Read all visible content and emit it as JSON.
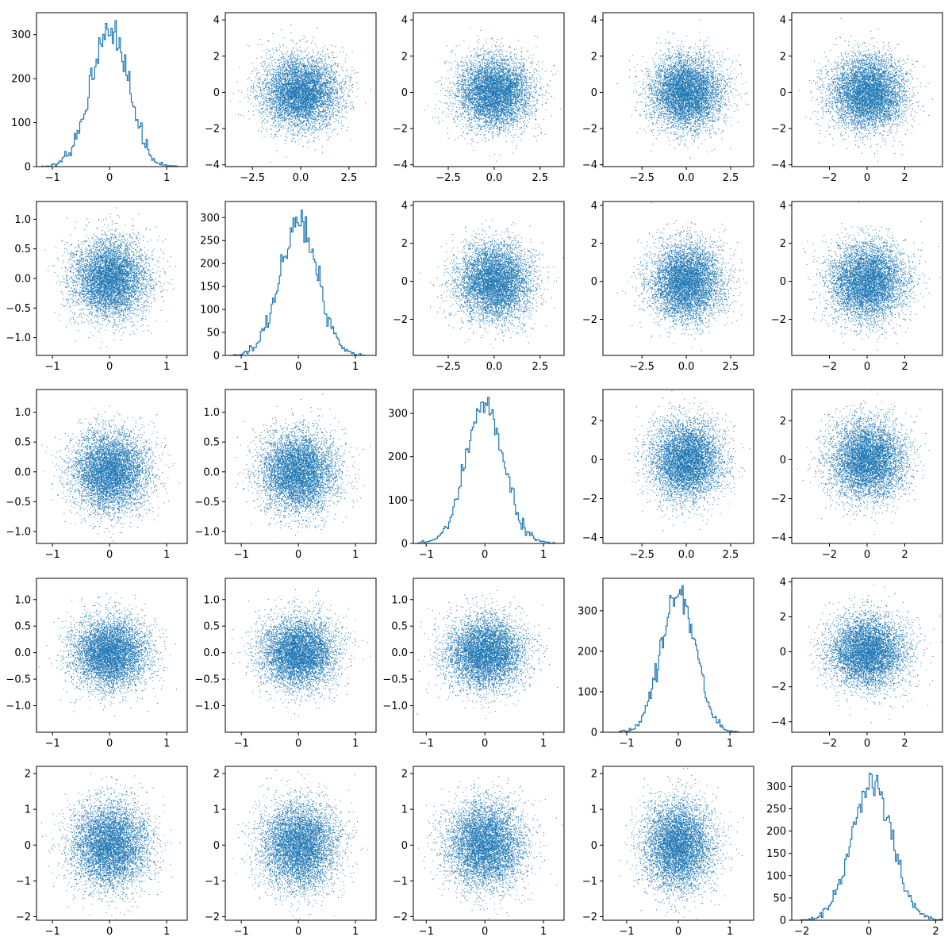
{
  "figure": {
    "title": "",
    "colors": {
      "series": "#1f77b4",
      "axes": "#000000",
      "background": "#ffffff"
    }
  },
  "chart_data": [
    {
      "type": "histogram",
      "row": 0,
      "col": 0,
      "xlim": [
        -1.28,
        1.36
      ],
      "ylim": [
        0,
        350
      ],
      "xticks": [
        -1,
        0,
        1
      ],
      "yticks": [
        0,
        100,
        200,
        300
      ],
      "peak": 332,
      "mean": 0.0,
      "std": 0.33,
      "samples": 10000,
      "bins": 100,
      "grid": false,
      "legend": "none"
    },
    {
      "type": "scatter",
      "row": 0,
      "col": 1,
      "xlim": [
        -3.9,
        3.9
      ],
      "ylim": [
        -4.1,
        4.4
      ],
      "xticks": [
        -2.5,
        0.0,
        2.5
      ],
      "yticks": [
        -4,
        -2,
        0,
        2,
        4
      ],
      "std_x": 1.0,
      "std_y": 1.0,
      "points": 10000,
      "marker": ",",
      "grid": false,
      "legend": "none"
    },
    {
      "type": "scatter",
      "row": 0,
      "col": 2,
      "xlim": [
        -4.4,
        3.8
      ],
      "ylim": [
        -4.1,
        4.4
      ],
      "xticks": [
        -2.5,
        0.0,
        2.5
      ],
      "yticks": [
        -4,
        -2,
        0,
        2,
        4
      ],
      "std_x": 1.0,
      "std_y": 1.0,
      "points": 10000,
      "marker": ",",
      "grid": false,
      "legend": "none"
    },
    {
      "type": "scatter",
      "row": 0,
      "col": 3,
      "xlim": [
        -4.7,
        3.8
      ],
      "ylim": [
        -4.1,
        4.4
      ],
      "xticks": [
        -2.5,
        0.0,
        2.5
      ],
      "yticks": [
        -4,
        -2,
        0,
        2,
        4
      ],
      "std_x": 1.0,
      "std_y": 1.0,
      "points": 10000,
      "marker": ",",
      "grid": false,
      "legend": "none"
    },
    {
      "type": "scatter",
      "row": 0,
      "col": 4,
      "xlim": [
        -4.0,
        4.0
      ],
      "ylim": [
        -4.1,
        4.4
      ],
      "xticks": [
        -2,
        0,
        2
      ],
      "yticks": [
        -4,
        -2,
        0,
        2,
        4
      ],
      "std_x": 1.0,
      "std_y": 1.0,
      "points": 10000,
      "marker": ",",
      "grid": false,
      "legend": "none"
    },
    {
      "type": "scatter",
      "row": 1,
      "col": 0,
      "xlim": [
        -1.28,
        1.36
      ],
      "ylim": [
        -1.3,
        1.3
      ],
      "xticks": [
        -1,
        0,
        1
      ],
      "yticks": [
        -1.0,
        -0.5,
        0.0,
        0.5,
        1.0
      ],
      "std_x": 0.33,
      "std_y": 0.33,
      "points": 10000,
      "marker": ",",
      "grid": false,
      "legend": "none"
    },
    {
      "type": "histogram",
      "row": 1,
      "col": 1,
      "xlim": [
        -1.28,
        1.36
      ],
      "ylim": [
        0,
        335
      ],
      "xticks": [
        -1,
        0,
        1
      ],
      "yticks": [
        0,
        50,
        100,
        150,
        200,
        250,
        300
      ],
      "peak": 316,
      "mean": 0.0,
      "std": 0.33,
      "samples": 10000,
      "bins": 100,
      "grid": false,
      "legend": "none"
    },
    {
      "type": "scatter",
      "row": 1,
      "col": 2,
      "xlim": [
        -4.4,
        3.8
      ],
      "ylim": [
        -3.9,
        4.2
      ],
      "xticks": [
        -2.5,
        0.0,
        2.5
      ],
      "yticks": [
        -2,
        0,
        2,
        4
      ],
      "std_x": 1.0,
      "std_y": 1.0,
      "points": 10000,
      "marker": ",",
      "grid": false,
      "legend": "none"
    },
    {
      "type": "scatter",
      "row": 1,
      "col": 3,
      "xlim": [
        -4.7,
        3.8
      ],
      "ylim": [
        -3.9,
        4.2
      ],
      "xticks": [
        -2.5,
        0.0,
        2.5
      ],
      "yticks": [
        -2,
        0,
        2,
        4
      ],
      "std_x": 1.0,
      "std_y": 1.0,
      "points": 10000,
      "marker": ",",
      "grid": false,
      "legend": "none"
    },
    {
      "type": "scatter",
      "row": 1,
      "col": 4,
      "xlim": [
        -4.0,
        4.0
      ],
      "ylim": [
        -3.9,
        4.2
      ],
      "xticks": [
        -2,
        0,
        2
      ],
      "yticks": [
        -2,
        0,
        2,
        4
      ],
      "std_x": 1.0,
      "std_y": 1.0,
      "points": 10000,
      "marker": ",",
      "grid": false,
      "legend": "none"
    },
    {
      "type": "scatter",
      "row": 2,
      "col": 0,
      "xlim": [
        -1.28,
        1.36
      ],
      "ylim": [
        -1.2,
        1.38
      ],
      "xticks": [
        -1,
        0,
        1
      ],
      "yticks": [
        -1.0,
        -0.5,
        0.0,
        0.5,
        1.0
      ],
      "std_x": 0.33,
      "std_y": 0.33,
      "points": 10000,
      "marker": ",",
      "grid": false,
      "legend": "none"
    },
    {
      "type": "scatter",
      "row": 2,
      "col": 1,
      "xlim": [
        -1.28,
        1.36
      ],
      "ylim": [
        -1.2,
        1.38
      ],
      "xticks": [
        -1,
        0,
        1
      ],
      "yticks": [
        -1.0,
        -0.5,
        0.0,
        0.5,
        1.0
      ],
      "std_x": 0.33,
      "std_y": 0.33,
      "points": 10000,
      "marker": ",",
      "grid": false,
      "legend": "none"
    },
    {
      "type": "histogram",
      "row": 2,
      "col": 2,
      "xlim": [
        -1.22,
        1.35
      ],
      "ylim": [
        0,
        355
      ],
      "xticks": [
        -1,
        0,
        1
      ],
      "yticks": [
        0,
        100,
        200,
        300
      ],
      "peak": 337,
      "mean": 0.0,
      "std": 0.33,
      "samples": 10000,
      "bins": 100,
      "grid": false,
      "legend": "none"
    },
    {
      "type": "scatter",
      "row": 2,
      "col": 3,
      "xlim": [
        -4.7,
        3.8
      ],
      "ylim": [
        -4.3,
        3.6
      ],
      "xticks": [
        -2.5,
        0.0,
        2.5
      ],
      "yticks": [
        -4,
        -2,
        0,
        2
      ],
      "std_x": 1.0,
      "std_y": 1.0,
      "points": 10000,
      "marker": ",",
      "grid": false,
      "legend": "none"
    },
    {
      "type": "scatter",
      "row": 2,
      "col": 4,
      "xlim": [
        -4.0,
        4.0
      ],
      "ylim": [
        -4.3,
        3.6
      ],
      "xticks": [
        -2,
        0,
        2
      ],
      "yticks": [
        -4,
        -2,
        0,
        2
      ],
      "std_x": 1.0,
      "std_y": 1.0,
      "points": 10000,
      "marker": ",",
      "grid": false,
      "legend": "none"
    },
    {
      "type": "scatter",
      "row": 3,
      "col": 0,
      "xlim": [
        -1.28,
        1.36
      ],
      "ylim": [
        -1.5,
        1.4
      ],
      "xticks": [
        -1,
        0,
        1
      ],
      "yticks": [
        -1.0,
        -0.5,
        0.0,
        0.5,
        1.0
      ],
      "std_x": 0.33,
      "std_y": 0.33,
      "points": 10000,
      "marker": ",",
      "grid": false,
      "legend": "none"
    },
    {
      "type": "scatter",
      "row": 3,
      "col": 1,
      "xlim": [
        -1.28,
        1.36
      ],
      "ylim": [
        -1.5,
        1.4
      ],
      "xticks": [
        -1,
        0,
        1
      ],
      "yticks": [
        -1.0,
        -0.5,
        0.0,
        0.5,
        1.0
      ],
      "std_x": 0.33,
      "std_y": 0.33,
      "points": 10000,
      "marker": ",",
      "grid": false,
      "legend": "none"
    },
    {
      "type": "scatter",
      "row": 3,
      "col": 2,
      "xlim": [
        -1.22,
        1.35
      ],
      "ylim": [
        -1.5,
        1.4
      ],
      "xticks": [
        -1,
        0,
        1
      ],
      "yticks": [
        -1.0,
        -0.5,
        0.0,
        0.5,
        1.0
      ],
      "std_x": 0.33,
      "std_y": 0.33,
      "points": 10000,
      "marker": ",",
      "grid": false,
      "legend": "none"
    },
    {
      "type": "histogram",
      "row": 3,
      "col": 3,
      "xlim": [
        -1.46,
        1.46
      ],
      "ylim": [
        0,
        380
      ],
      "xticks": [
        -1,
        0,
        1
      ],
      "yticks": [
        0,
        100,
        200,
        300
      ],
      "peak": 362,
      "mean": 0.0,
      "std": 0.33,
      "samples": 10000,
      "bins": 100,
      "grid": false,
      "legend": "none"
    },
    {
      "type": "scatter",
      "row": 3,
      "col": 4,
      "xlim": [
        -4.0,
        4.0
      ],
      "ylim": [
        -4.6,
        4.2
      ],
      "xticks": [
        -2,
        0,
        2
      ],
      "yticks": [
        -4,
        -2,
        0,
        2,
        4
      ],
      "std_x": 1.0,
      "std_y": 1.0,
      "points": 10000,
      "marker": ",",
      "grid": false,
      "legend": "none"
    },
    {
      "type": "scatter",
      "row": 4,
      "col": 0,
      "xlim": [
        -1.28,
        1.36
      ],
      "ylim": [
        -2.1,
        2.2
      ],
      "xticks": [
        -1,
        0,
        1
      ],
      "yticks": [
        -2,
        -1,
        0,
        1,
        2
      ],
      "std_x": 0.33,
      "std_y": 0.6,
      "points": 10000,
      "marker": ",",
      "grid": false,
      "legend": "none"
    },
    {
      "type": "scatter",
      "row": 4,
      "col": 1,
      "xlim": [
        -1.28,
        1.36
      ],
      "ylim": [
        -2.1,
        2.2
      ],
      "xticks": [
        -1,
        0,
        1
      ],
      "yticks": [
        -2,
        -1,
        0,
        1,
        2
      ],
      "std_x": 0.33,
      "std_y": 0.6,
      "points": 10000,
      "marker": ",",
      "grid": false,
      "legend": "none"
    },
    {
      "type": "scatter",
      "row": 4,
      "col": 2,
      "xlim": [
        -1.22,
        1.35
      ],
      "ylim": [
        -2.1,
        2.2
      ],
      "xticks": [
        -1,
        0,
        1
      ],
      "yticks": [
        -2,
        -1,
        0,
        1,
        2
      ],
      "std_x": 0.33,
      "std_y": 0.6,
      "points": 10000,
      "marker": ",",
      "grid": false,
      "legend": "none"
    },
    {
      "type": "scatter",
      "row": 4,
      "col": 3,
      "xlim": [
        -1.46,
        1.46
      ],
      "ylim": [
        -2.1,
        2.2
      ],
      "xticks": [
        -1,
        0,
        1
      ],
      "yticks": [
        -2,
        -1,
        0,
        1,
        2
      ],
      "std_x": 0.33,
      "std_y": 0.6,
      "points": 10000,
      "marker": ",",
      "grid": false,
      "legend": "none"
    },
    {
      "type": "histogram",
      "row": 4,
      "col": 4,
      "xlim": [
        -2.3,
        2.2
      ],
      "ylim": [
        0,
        345
      ],
      "xticks": [
        -2,
        0,
        2
      ],
      "yticks": [
        0,
        50,
        100,
        150,
        200,
        250,
        300
      ],
      "peak": 330,
      "mean": 0.1,
      "std": 0.6,
      "samples": 10000,
      "bins": 100,
      "grid": false,
      "legend": "none"
    }
  ]
}
